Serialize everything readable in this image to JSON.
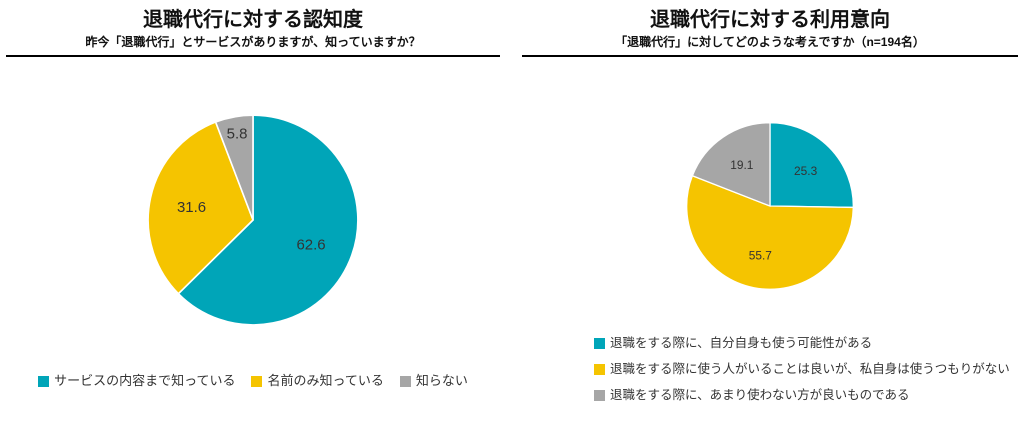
{
  "chart_data": [
    {
      "type": "pie",
      "title": "退職代行に対する認知度",
      "subtitle": "昨今「退職代行」とサービスがありますが、知っていますか？",
      "labels": [
        "サービスの内容まで知っている",
        "名前のみ知っている",
        "知らない"
      ],
      "values": [
        62.6,
        31.6,
        5.8
      ],
      "colors": [
        "#00A5B8",
        "#F5C400",
        "#A6A6A6"
      ],
      "label_color": "#333333",
      "start_angle": -90,
      "direction": "clockwise",
      "legend_position": "bottom-horizontal"
    },
    {
      "type": "pie",
      "title": "退職代行に対する利用意向",
      "subtitle": "「退職代行」に対してどのような考えですか（n=194名）",
      "labels": [
        "退職をする際に、自分自身も使う可能性がある",
        "退職をする際に使う人がいることは良いが、私自身は使うつもりがない",
        "退職をする際に、あまり使わない方が良いものである"
      ],
      "values": [
        25.3,
        55.7,
        19.1
      ],
      "colors": [
        "#00A5B8",
        "#F5C400",
        "#A6A6A6"
      ],
      "label_color": "#333333",
      "start_angle": -90,
      "direction": "clockwise",
      "legend_position": "bottom-vertical"
    }
  ]
}
